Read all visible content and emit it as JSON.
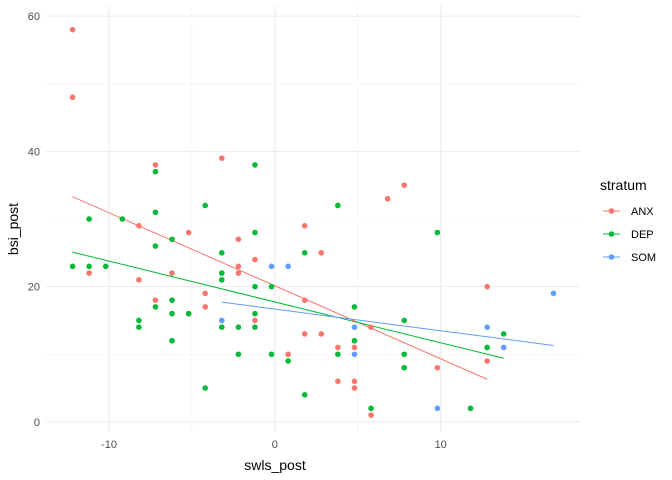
{
  "chart_data": {
    "type": "scatter",
    "title": "",
    "xlabel": "swls_post",
    "ylabel": "bsi_post",
    "xlim": [
      -13.8,
      18.4
    ],
    "ylim": [
      -1.5,
      61.5
    ],
    "x_ticks": [
      -10,
      0,
      10
    ],
    "y_ticks": [
      0,
      20,
      40,
      60
    ],
    "x_tick_labels": [
      "-10",
      "0",
      "10"
    ],
    "y_tick_labels": [
      "0",
      "20",
      "40",
      "60"
    ],
    "grid": true,
    "legend": {
      "title": "stratum",
      "position": "right"
    },
    "series": [
      {
        "name": "ANX",
        "color": "#F8766D",
        "points": [
          [
            -12.2,
            58
          ],
          [
            -12.2,
            48
          ],
          [
            -11.2,
            22
          ],
          [
            -8.2,
            29
          ],
          [
            -8.2,
            21
          ],
          [
            -7.2,
            38
          ],
          [
            -7.2,
            18
          ],
          [
            -6.2,
            22
          ],
          [
            -5.2,
            28
          ],
          [
            -5.2,
            16
          ],
          [
            -4.2,
            19
          ],
          [
            -4.2,
            17
          ],
          [
            -3.2,
            39
          ],
          [
            -2.2,
            27
          ],
          [
            -2.2,
            23
          ],
          [
            -2.2,
            22
          ],
          [
            -1.2,
            24
          ],
          [
            -1.2,
            15
          ],
          [
            0.8,
            10
          ],
          [
            1.8,
            29
          ],
          [
            1.8,
            18
          ],
          [
            1.8,
            13
          ],
          [
            2.8,
            25
          ],
          [
            2.8,
            13
          ],
          [
            3.8,
            11
          ],
          [
            3.8,
            6
          ],
          [
            4.8,
            11
          ],
          [
            4.8,
            6
          ],
          [
            4.8,
            5
          ],
          [
            5.8,
            14
          ],
          [
            5.8,
            1
          ],
          [
            6.8,
            33
          ],
          [
            7.8,
            35
          ],
          [
            9.8,
            8
          ],
          [
            12.8,
            20
          ],
          [
            12.8,
            9
          ]
        ],
        "trend": [
          [
            -12.2,
            33.3
          ],
          [
            12.8,
            6.3
          ]
        ]
      },
      {
        "name": "DEP",
        "color": "#00BA38",
        "points": [
          [
            -12.2,
            23
          ],
          [
            -11.2,
            30
          ],
          [
            -11.2,
            23
          ],
          [
            -10.2,
            23
          ],
          [
            -9.2,
            30
          ],
          [
            -8.2,
            15
          ],
          [
            -8.2,
            14
          ],
          [
            -7.2,
            37
          ],
          [
            -7.2,
            31
          ],
          [
            -7.2,
            26
          ],
          [
            -7.2,
            17
          ],
          [
            -6.2,
            27
          ],
          [
            -6.2,
            18
          ],
          [
            -6.2,
            16
          ],
          [
            -6.2,
            12
          ],
          [
            -5.2,
            16
          ],
          [
            -4.2,
            32
          ],
          [
            -4.2,
            5
          ],
          [
            -3.2,
            25
          ],
          [
            -3.2,
            22
          ],
          [
            -3.2,
            21
          ],
          [
            -3.2,
            14
          ],
          [
            -2.2,
            14
          ],
          [
            -2.2,
            10
          ],
          [
            -1.2,
            38
          ],
          [
            -1.2,
            28
          ],
          [
            -1.2,
            20
          ],
          [
            -1.2,
            16
          ],
          [
            -1.2,
            14
          ],
          [
            -0.2,
            20
          ],
          [
            -0.2,
            10
          ],
          [
            0.8,
            9
          ],
          [
            1.8,
            25
          ],
          [
            1.8,
            4
          ],
          [
            3.8,
            32
          ],
          [
            3.8,
            10
          ],
          [
            4.8,
            17
          ],
          [
            4.8,
            12
          ],
          [
            5.8,
            2
          ],
          [
            7.8,
            15
          ],
          [
            7.8,
            10
          ],
          [
            7.8,
            8
          ],
          [
            9.8,
            28
          ],
          [
            11.8,
            2
          ],
          [
            12.8,
            11
          ],
          [
            13.8,
            13
          ]
        ],
        "trend": [
          [
            -12.2,
            25.1
          ],
          [
            13.8,
            9.4
          ]
        ]
      },
      {
        "name": "SOM",
        "color": "#619CFF",
        "points": [
          [
            -3.2,
            15
          ],
          [
            -0.2,
            23
          ],
          [
            0.8,
            23
          ],
          [
            4.8,
            14
          ],
          [
            4.8,
            10
          ],
          [
            9.8,
            2
          ],
          [
            12.8,
            14
          ],
          [
            13.8,
            11
          ],
          [
            16.8,
            19
          ]
        ],
        "trend": [
          [
            -3.2,
            17.7
          ],
          [
            16.8,
            11.3
          ]
        ]
      }
    ]
  }
}
